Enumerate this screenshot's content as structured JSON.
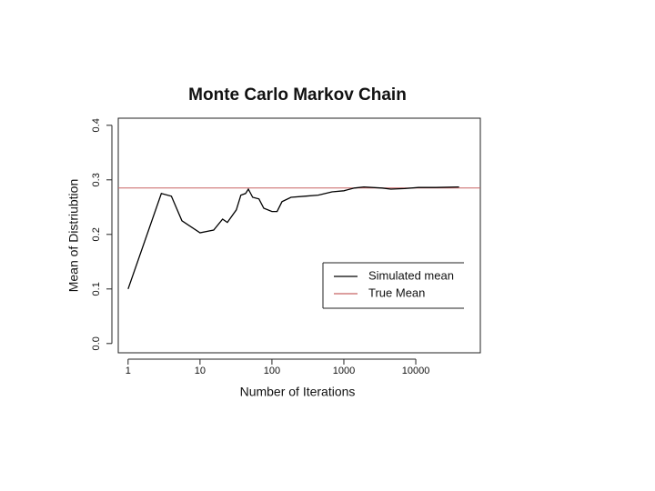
{
  "chart_data": {
    "type": "line",
    "title": "Monte Carlo Markov Chain",
    "x_label": "Number of Iterations",
    "y_label": "Mean of Distriubtion",
    "x_scale": "log",
    "x": [
      1,
      2.9,
      4,
      5.6,
      10,
      15.5,
      20.6,
      24,
      32,
      37,
      43,
      47,
      54,
      66,
      77,
      100,
      118,
      138,
      184,
      285,
      440,
      685,
      1000,
      1400,
      1900,
      3400,
      4500,
      7000,
      10900,
      19000,
      40000
    ],
    "series": [
      {
        "name": "Simulated mean",
        "color": "#000000",
        "values": [
          0.1,
          0.275,
          0.27,
          0.225,
          0.203,
          0.208,
          0.228,
          0.222,
          0.245,
          0.272,
          0.275,
          0.283,
          0.268,
          0.265,
          0.248,
          0.242,
          0.242,
          0.26,
          0.268,
          0.27,
          0.272,
          0.278,
          0.28,
          0.285,
          0.287,
          0.285,
          0.283,
          0.284,
          0.286,
          0.286,
          0.287
        ]
      }
    ],
    "reference_line": {
      "name": "True Mean",
      "value": 0.285,
      "color": "#c86464"
    },
    "xlim": [
      0.73,
      79000
    ],
    "ylim": [
      -0.017,
      0.413
    ],
    "xticks": [
      1,
      10,
      100,
      1000,
      10000
    ],
    "yticks": [
      {
        "value": 0,
        "label": "0.0"
      },
      0.1,
      0.2,
      0.3,
      0.4
    ],
    "legend": "right"
  }
}
